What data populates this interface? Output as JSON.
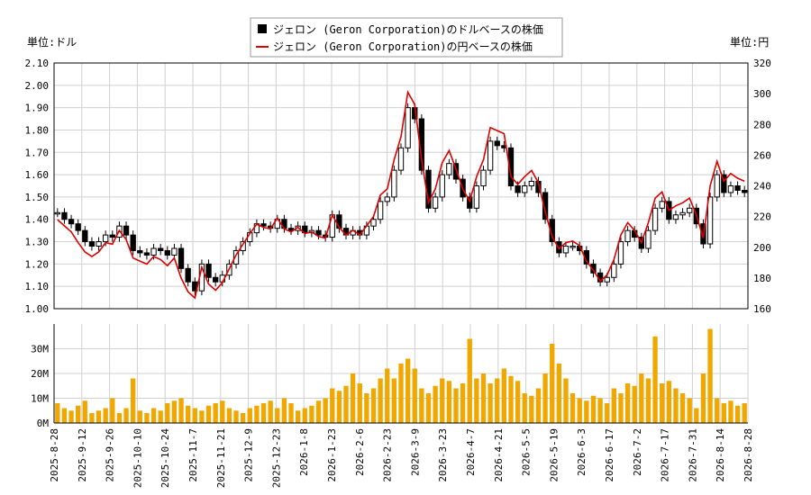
{
  "chart_data": {
    "type": "candlestick_line_volume",
    "legend": [
      {
        "name": "ジェロン (Geron Corporation)のドルベースの株価",
        "color": "#000000"
      },
      {
        "name": "ジェロン (Geron Corporation)の円ベースの株価",
        "color": "#dd0000"
      }
    ],
    "left_unit_label": "単位:ドル",
    "right_unit_label": "単位:円",
    "price_axis": {
      "ylim": [
        1.0,
        2.1
      ],
      "ticks": [
        "2.10",
        "2.00",
        "1.90",
        "1.80",
        "1.70",
        "1.60",
        "1.50",
        "1.40",
        "1.30",
        "1.20",
        "1.10",
        "1.00"
      ]
    },
    "yen_axis": {
      "ylim": [
        160,
        320
      ],
      "ticks": [
        "320",
        "300",
        "280",
        "260",
        "240",
        "220",
        "200",
        "180",
        "160"
      ]
    },
    "volume_axis": {
      "ylim": [
        0,
        40
      ],
      "unit": "M",
      "ticks": [
        "30M",
        "20M",
        "10M",
        "0M"
      ]
    },
    "x_tick_labels": [
      "2025-8-28",
      "2025-9-12",
      "2025-9-26",
      "2025-10-10",
      "2025-10-24",
      "2025-11-7",
      "2025-11-21",
      "2025-12-9",
      "2025-12-23",
      "2026-1-8",
      "2026-1-23",
      "2026-2-6",
      "2026-2-23",
      "2026-3-9",
      "2026-3-23",
      "2026-4-7",
      "2026-4-21",
      "2026-5-5",
      "2026-5-19",
      "2026-6-3",
      "2026-6-17",
      "2026-7-2",
      "2026-7-17",
      "2026-7-31",
      "2026-8-14",
      "2026-8-28"
    ],
    "close_usd": [
      1.43,
      1.4,
      1.38,
      1.35,
      1.3,
      1.28,
      1.3,
      1.33,
      1.32,
      1.37,
      1.33,
      1.26,
      1.25,
      1.24,
      1.27,
      1.26,
      1.24,
      1.27,
      1.18,
      1.12,
      1.08,
      1.2,
      1.14,
      1.12,
      1.15,
      1.2,
      1.26,
      1.3,
      1.34,
      1.38,
      1.37,
      1.36,
      1.4,
      1.36,
      1.35,
      1.37,
      1.34,
      1.35,
      1.33,
      1.32,
      1.42,
      1.36,
      1.33,
      1.35,
      1.33,
      1.37,
      1.4,
      1.48,
      1.5,
      1.62,
      1.72,
      1.9,
      1.85,
      1.62,
      1.45,
      1.5,
      1.6,
      1.65,
      1.58,
      1.5,
      1.45,
      1.55,
      1.62,
      1.75,
      1.73,
      1.72,
      1.55,
      1.52,
      1.55,
      1.57,
      1.52,
      1.4,
      1.3,
      1.25,
      1.28,
      1.28,
      1.26,
      1.2,
      1.16,
      1.12,
      1.14,
      1.2,
      1.3,
      1.35,
      1.32,
      1.27,
      1.35,
      1.45,
      1.48,
      1.4,
      1.42,
      1.43,
      1.45,
      1.38,
      1.29,
      1.5,
      1.6,
      1.52,
      1.55,
      1.53,
      1.52
    ],
    "close_jpy": [
      218,
      214,
      210,
      203,
      197,
      194,
      197,
      203,
      202,
      211,
      205,
      193,
      191,
      189,
      194,
      192,
      188,
      193,
      180,
      171,
      167,
      187,
      176,
      172,
      177,
      186,
      195,
      202,
      209,
      215,
      213,
      212,
      219,
      212,
      210,
      213,
      209,
      210,
      207,
      206,
      221,
      213,
      208,
      211,
      208,
      214,
      220,
      234,
      238,
      257,
      272,
      301,
      293,
      257,
      229,
      238,
      255,
      263,
      251,
      238,
      230,
      246,
      257,
      278,
      276,
      274,
      246,
      241,
      246,
      250,
      242,
      223,
      207,
      199,
      203,
      204,
      201,
      191,
      185,
      178,
      182,
      192,
      208,
      216,
      211,
      203,
      216,
      232,
      236,
      224,
      227,
      229,
      232,
      221,
      206,
      240,
      256,
      243,
      248,
      245,
      243
    ],
    "volume_m": [
      8,
      6,
      5,
      7,
      9,
      4,
      5,
      6,
      10,
      4,
      6,
      18,
      5,
      4,
      6,
      5,
      8,
      9,
      10,
      7,
      6,
      5,
      7,
      8,
      9,
      6,
      5,
      4,
      6,
      7,
      8,
      9,
      6,
      10,
      8,
      5,
      6,
      7,
      9,
      10,
      14,
      13,
      15,
      20,
      16,
      12,
      14,
      18,
      22,
      18,
      24,
      26,
      22,
      14,
      12,
      15,
      18,
      17,
      14,
      16,
      34,
      18,
      20,
      16,
      18,
      22,
      19,
      17,
      12,
      11,
      14,
      20,
      32,
      24,
      18,
      12,
      10,
      9,
      11,
      10,
      8,
      14,
      12,
      16,
      15,
      20,
      18,
      35,
      16,
      17,
      14,
      12,
      10,
      6,
      20,
      38,
      10,
      8,
      9,
      7,
      8
    ]
  }
}
